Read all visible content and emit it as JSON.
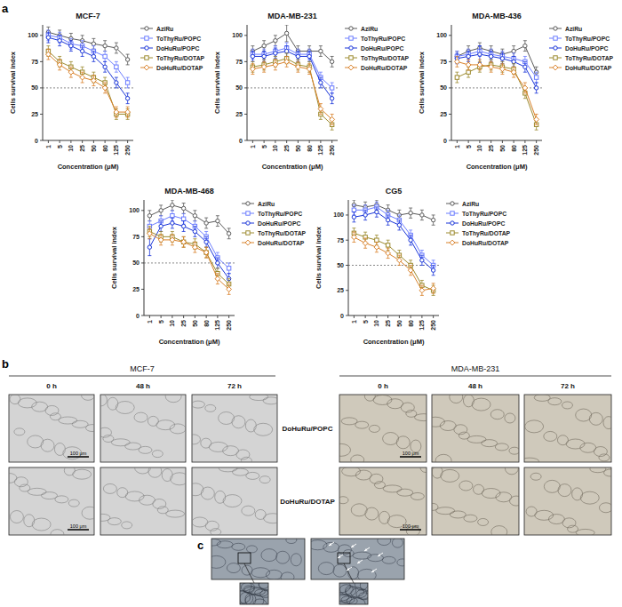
{
  "chart_data": [
    {
      "type": "line",
      "title": "MCF-7",
      "x_label": "Concentration (μM)",
      "y_label": "Cells survival index",
      "categories": [
        "1",
        "5",
        "10",
        "25",
        "50",
        "80",
        "125",
        "250"
      ],
      "ylim": [
        0,
        110
      ],
      "yticks": [
        0,
        25,
        50,
        75,
        100
      ],
      "grid": false,
      "legend": "right",
      "threshold": 50,
      "series": [
        {
          "name": "AziRu",
          "color": "#5a5a5a",
          "marker": "circle",
          "values": [
            103,
            100,
            97,
            95,
            92,
            90,
            88,
            77
          ],
          "errors": [
            5,
            5,
            5,
            5,
            5,
            5,
            5,
            5
          ]
        },
        {
          "name": "ToThyRu/POPC",
          "color": "#6b7cff",
          "marker": "square",
          "values": [
            100,
            98,
            92,
            90,
            85,
            80,
            70,
            55
          ],
          "errors": [
            5,
            5,
            5,
            5,
            5,
            5,
            5,
            5
          ]
        },
        {
          "name": "DoHuRu/POPC",
          "color": "#1a35d8",
          "marker": "circle",
          "values": [
            98,
            95,
            90,
            85,
            80,
            70,
            55,
            40
          ],
          "errors": [
            5,
            5,
            5,
            5,
            5,
            5,
            5,
            5
          ]
        },
        {
          "name": "ToThyRu/DOTAP",
          "color": "#9c8a2e",
          "marker": "square",
          "values": [
            85,
            75,
            70,
            65,
            60,
            55,
            25,
            25
          ],
          "errors": [
            5,
            5,
            5,
            5,
            5,
            5,
            5,
            5
          ]
        },
        {
          "name": "DoHuRu/DOTAP",
          "color": "#d9822b",
          "marker": "diamond",
          "values": [
            82,
            72,
            65,
            60,
            57,
            50,
            27,
            27
          ],
          "errors": [
            5,
            5,
            5,
            5,
            5,
            5,
            5,
            5
          ]
        }
      ]
    },
    {
      "type": "line",
      "title": "MDA-MB-231",
      "x_label": "Concentration (μM)",
      "y_label": "Cells survival index",
      "categories": [
        "1",
        "5",
        "10",
        "25",
        "50",
        "80",
        "125",
        "250"
      ],
      "ylim": [
        0,
        110
      ],
      "yticks": [
        0,
        25,
        50,
        75,
        100
      ],
      "grid": false,
      "legend": "right",
      "threshold": 50,
      "series": [
        {
          "name": "AziRu",
          "color": "#5a5a5a",
          "marker": "circle",
          "values": [
            85,
            90,
            95,
            102,
            85,
            85,
            85,
            75
          ],
          "errors": [
            5,
            5,
            5,
            8,
            5,
            5,
            5,
            5
          ]
        },
        {
          "name": "ToThyRu/POPC",
          "color": "#6b7cff",
          "marker": "square",
          "values": [
            82,
            82,
            85,
            88,
            82,
            82,
            60,
            50
          ],
          "errors": [
            5,
            5,
            5,
            5,
            5,
            5,
            5,
            5
          ]
        },
        {
          "name": "DoHuRu/POPC",
          "color": "#1a35d8",
          "marker": "circle",
          "values": [
            80,
            80,
            83,
            85,
            80,
            80,
            55,
            40
          ],
          "errors": [
            5,
            5,
            5,
            5,
            5,
            5,
            5,
            5
          ]
        },
        {
          "name": "ToThyRu/DOTAP",
          "color": "#9c8a2e",
          "marker": "square",
          "values": [
            70,
            72,
            75,
            78,
            72,
            70,
            25,
            15
          ],
          "errors": [
            5,
            5,
            5,
            5,
            5,
            5,
            5,
            5
          ]
        },
        {
          "name": "DoHuRu/DOTAP",
          "color": "#d9822b",
          "marker": "diamond",
          "values": [
            68,
            70,
            72,
            75,
            70,
            68,
            30,
            20
          ],
          "errors": [
            5,
            5,
            5,
            5,
            5,
            5,
            5,
            5
          ]
        }
      ]
    },
    {
      "type": "line",
      "title": "MDA-MB-436",
      "x_label": "Concentration (μM)",
      "y_label": "Cells survival index",
      "categories": [
        "1",
        "5",
        "10",
        "25",
        "50",
        "80",
        "125",
        "250"
      ],
      "ylim": [
        0,
        110
      ],
      "yticks": [
        0,
        25,
        50,
        75,
        100
      ],
      "grid": false,
      "legend": "right",
      "threshold": 50,
      "series": [
        {
          "name": "AziRu",
          "color": "#5a5a5a",
          "marker": "circle",
          "values": [
            80,
            85,
            88,
            85,
            82,
            85,
            90,
            65
          ],
          "errors": [
            5,
            5,
            5,
            5,
            5,
            5,
            5,
            5
          ]
        },
        {
          "name": "ToThyRu/POPC",
          "color": "#6b7cff",
          "marker": "square",
          "values": [
            80,
            82,
            85,
            82,
            80,
            78,
            75,
            60
          ],
          "errors": [
            5,
            5,
            5,
            5,
            5,
            5,
            5,
            5
          ]
        },
        {
          "name": "DoHuRu/POPC",
          "color": "#1a35d8",
          "marker": "circle",
          "values": [
            78,
            80,
            82,
            80,
            78,
            75,
            70,
            50
          ],
          "errors": [
            5,
            5,
            8,
            5,
            5,
            5,
            5,
            5
          ]
        },
        {
          "name": "ToThyRu/DOTAP",
          "color": "#9c8a2e",
          "marker": "square",
          "values": [
            60,
            65,
            70,
            72,
            70,
            68,
            45,
            15
          ],
          "errors": [
            5,
            5,
            5,
            5,
            5,
            5,
            5,
            5
          ]
        },
        {
          "name": "DoHuRu/DOTAP",
          "color": "#d9822b",
          "marker": "diamond",
          "values": [
            75,
            72,
            72,
            70,
            68,
            65,
            50,
            20
          ],
          "errors": [
            5,
            5,
            5,
            5,
            5,
            5,
            5,
            5
          ]
        }
      ]
    },
    {
      "type": "line",
      "title": "MDA-MB-468",
      "x_label": "Concentration (μM)",
      "y_label": "Cells survival index",
      "categories": [
        "1",
        "5",
        "10",
        "25",
        "50",
        "80",
        "125",
        "250"
      ],
      "ylim": [
        0,
        110
      ],
      "yticks": [
        0,
        25,
        50,
        75,
        100
      ],
      "grid": false,
      "legend": "right",
      "threshold": 50,
      "series": [
        {
          "name": "AziRu",
          "color": "#5a5a5a",
          "marker": "circle",
          "values": [
            95,
            100,
            105,
            102,
            95,
            88,
            90,
            78
          ],
          "errors": [
            5,
            5,
            5,
            5,
            5,
            5,
            5,
            5
          ]
        },
        {
          "name": "ToThyRu/POPC",
          "color": "#6b7cff",
          "marker": "square",
          "values": [
            85,
            90,
            95,
            92,
            85,
            75,
            55,
            45
          ],
          "errors": [
            5,
            5,
            5,
            5,
            5,
            5,
            5,
            5
          ]
        },
        {
          "name": "DoHuRu/POPC",
          "color": "#1a35d8",
          "marker": "circle",
          "values": [
            65,
            85,
            88,
            85,
            80,
            70,
            50,
            35
          ],
          "errors": [
            8,
            5,
            5,
            5,
            5,
            5,
            5,
            5
          ]
        },
        {
          "name": "ToThyRu/DOTAP",
          "color": "#9c8a2e",
          "marker": "square",
          "values": [
            80,
            75,
            75,
            70,
            68,
            60,
            40,
            30
          ],
          "errors": [
            5,
            5,
            5,
            5,
            5,
            5,
            5,
            5
          ]
        },
        {
          "name": "DoHuRu/DOTAP",
          "color": "#d9822b",
          "marker": "diamond",
          "values": [
            78,
            72,
            72,
            70,
            65,
            60,
            35,
            25
          ],
          "errors": [
            5,
            5,
            5,
            5,
            5,
            5,
            5,
            5
          ]
        }
      ]
    },
    {
      "type": "line",
      "title": "CG5",
      "x_label": "Concentration (μM)",
      "y_label": "Cells survival index",
      "categories": [
        "1",
        "5",
        "10",
        "25",
        "50",
        "80",
        "125",
        "250"
      ],
      "ylim": [
        0,
        115
      ],
      "yticks": [
        0,
        25,
        50,
        75,
        100
      ],
      "grid": false,
      "legend": "right",
      "threshold": 50,
      "series": [
        {
          "name": "AziRu",
          "color": "#5a5a5a",
          "marker": "circle",
          "values": [
            110,
            108,
            110,
            105,
            100,
            102,
            100,
            95
          ],
          "errors": [
            5,
            5,
            5,
            5,
            5,
            5,
            5,
            5
          ]
        },
        {
          "name": "ToThyRu/POPC",
          "color": "#6b7cff",
          "marker": "square",
          "values": [
            105,
            105,
            108,
            100,
            95,
            80,
            60,
            50
          ],
          "errors": [
            5,
            5,
            5,
            5,
            5,
            5,
            5,
            5
          ]
        },
        {
          "name": "DoHuRu/POPC",
          "color": "#1a35d8",
          "marker": "circle",
          "values": [
            98,
            100,
            103,
            95,
            90,
            75,
            55,
            45
          ],
          "errors": [
            5,
            5,
            5,
            5,
            5,
            5,
            5,
            5
          ]
        },
        {
          "name": "ToThyRu/DOTAP",
          "color": "#9c8a2e",
          "marker": "square",
          "values": [
            82,
            78,
            75,
            70,
            60,
            50,
            30,
            25
          ],
          "errors": [
            5,
            5,
            5,
            5,
            5,
            5,
            5,
            5
          ]
        },
        {
          "name": "DoHuRu/DOTAP",
          "color": "#d9822b",
          "marker": "diamond",
          "values": [
            78,
            72,
            68,
            62,
            55,
            45,
            25,
            27
          ],
          "errors": [
            5,
            5,
            5,
            5,
            5,
            5,
            5,
            5
          ]
        }
      ]
    }
  ],
  "figure": {
    "panel_labels": [
      "a",
      "b",
      "c"
    ],
    "panel_b": {
      "cell_lines": [
        "MCF-7",
        "MDA-MB-231"
      ],
      "times": [
        "0 h",
        "48 h",
        "72 h"
      ],
      "treatments": [
        "DoHuRu/POPC",
        "DoHuRu/DOTAP"
      ],
      "scale_bar": "100 μm"
    }
  }
}
